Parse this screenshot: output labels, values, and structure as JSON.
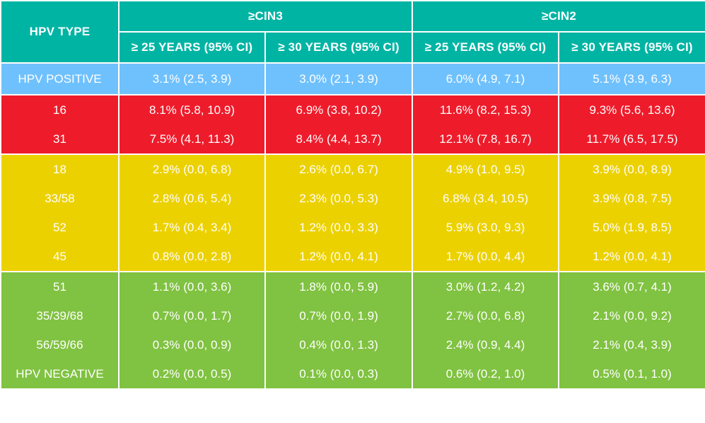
{
  "header": {
    "type_label": "HPV TYPE",
    "group1": "≥CIN3",
    "group2": "≥CIN2",
    "sub": [
      "≥ 25 YEARS (95% CI)",
      "≥ 30 YEARS (95% CI)",
      "≥ 25 YEARS (95% CI)",
      "≥ 30 YEARS (95% CI)"
    ]
  },
  "colors": {
    "header": "#00b4a4",
    "blue": "#6fc1fd",
    "red": "#ee1c2b",
    "yellow": "#ecd100",
    "green": "#80c241"
  },
  "rows": [
    {
      "band": "blue",
      "type": "HPV POSITIVE",
      "values": [
        "3.1% (2.5, 3.9)",
        "3.0% (2.1, 3.9)",
        "6.0% (4.9, 7.1)",
        "5.1% (3.9, 6.3)"
      ]
    },
    {
      "band": "red",
      "type": "16",
      "values": [
        "8.1% (5.8, 10.9)",
        "6.9% (3.8, 10.2)",
        "11.6% (8.2, 15.3)",
        "9.3% (5.6, 13.6)"
      ]
    },
    {
      "band": "red",
      "type": "31",
      "values": [
        "7.5% (4.1, 11.3)",
        "8.4% (4.4, 13.7)",
        "12.1% (7.8, 16.7)",
        "11.7% (6.5, 17.5)"
      ]
    },
    {
      "band": "yellow",
      "type": "18",
      "values": [
        "2.9% (0.0, 6.8)",
        "2.6% (0.0, 6.7)",
        "4.9% (1.0, 9.5)",
        "3.9% (0.0, 8.9)"
      ]
    },
    {
      "band": "yellow",
      "type": "33/58",
      "values": [
        "2.8% (0.6, 5.4)",
        "2.3% (0.0, 5.3)",
        "6.8% (3.4, 10.5)",
        "3.9% (0.8, 7.5)"
      ]
    },
    {
      "band": "yellow",
      "type": "52",
      "values": [
        "1.7% (0.4, 3.4)",
        "1.2% (0.0, 3.3)",
        "5.9% (3.0, 9.3)",
        "5.0% (1.9, 8.5)"
      ]
    },
    {
      "band": "yellow",
      "type": "45",
      "values": [
        "0.8% (0.0, 2.8)",
        "1.2% (0.0, 4.1)",
        "1.7% (0.0, 4.4)",
        "1.2% (0.0, 4.1)"
      ]
    },
    {
      "band": "green",
      "type": "51",
      "values": [
        "1.1% (0.0, 3.6)",
        "1.8% (0.0, 5.9)",
        "3.0% (1.2, 4.2)",
        "3.6% (0.7, 4.1)"
      ]
    },
    {
      "band": "green",
      "type": "35/39/68",
      "values": [
        "0.7% (0.0, 1.7)",
        "0.7% (0.0, 1.9)",
        "2.7% (0.0, 6.8)",
        "2.1% (0.0, 9.2)"
      ]
    },
    {
      "band": "green",
      "type": "56/59/66",
      "values": [
        "0.3% (0.0, 0.9)",
        "0.4% (0.0, 1.3)",
        "2.4% (0.9, 4.4)",
        "2.1% (0.4, 3.9)"
      ]
    },
    {
      "band": "green",
      "type": "HPV NEGATIVE",
      "values": [
        "0.2% (0.0, 0.5)",
        "0.1% (0.0, 0.3)",
        "0.6% (0.2, 1.0)",
        "0.5% (0.1, 1.0)"
      ]
    }
  ]
}
